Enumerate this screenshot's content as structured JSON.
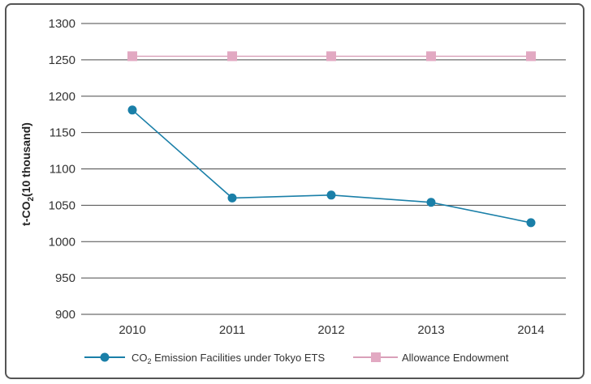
{
  "chart_data": {
    "type": "line",
    "categories": [
      "2010",
      "2011",
      "2012",
      "2013",
      "2014"
    ],
    "series": [
      {
        "name": "CO2 Emission Facilities under Tokyo ETS",
        "name_parts": {
          "pre": "CO",
          "sub": "2",
          "post": " Emission Facilities under Tokyo ETS"
        },
        "values": [
          1181,
          1060,
          1064,
          1054,
          1026
        ],
        "color": "#1a7fa8",
        "marker": "circle"
      },
      {
        "name": "Allowance Endowment",
        "values": [
          1255,
          1255,
          1255,
          1255,
          1255
        ],
        "color": "#d9a0b9",
        "marker": "square"
      }
    ],
    "ylabel": "t-CO2(10 thousand)",
    "ylabel_parts": {
      "pre": "t-CO",
      "sub": "2",
      "post": "(10 thousand)"
    },
    "y_ticks": [
      "1300",
      "1250",
      "1200",
      "1150",
      "1100",
      "1050",
      "1000",
      "950",
      "900"
    ],
    "ylim": [
      900,
      1300
    ],
    "grid": true,
    "legend_position": "bottom"
  }
}
